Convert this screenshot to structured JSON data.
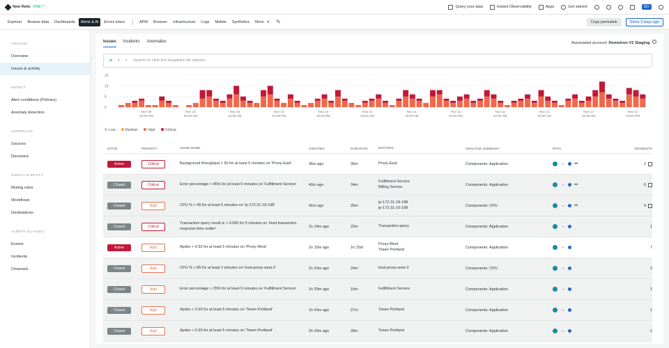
{
  "topbar": {
    "logo_text": "New Relic",
    "logo_suffix": "ONE™",
    "links": [
      "Query your data",
      "Instant Observability",
      "Apps",
      "Get started"
    ],
    "notif_badge": "10+"
  },
  "nav": {
    "items": [
      "Explorer",
      "Browse data",
      "Dashboards",
      "Alerts & AI",
      "Errors inbox",
      "APM",
      "Browser",
      "Infrastructure",
      "Logs",
      "Mobile",
      "Synthetics",
      "More"
    ],
    "active_index": 3,
    "permalink": "Copy permalink",
    "since": "Since 3 days ago"
  },
  "sidebar": {
    "sections": [
      {
        "title": "ANALYZE",
        "items": [
          "Overview",
          "Issues & activity"
        ]
      },
      {
        "title": "DETECT",
        "items": [
          "Alert conditions (Policies)",
          "Anomaly detection"
        ]
      },
      {
        "title": "CORRELATE",
        "items": [
          "Sources",
          "Decisions"
        ]
      },
      {
        "title": "ENRICH & NOTIFY",
        "items": [
          "Muting rules",
          "Workflows",
          "Destinations"
        ]
      },
      {
        "title": "ALERTS (CLASSIC)",
        "items": [
          "Events",
          "Incidents",
          "Channels"
        ]
      }
    ],
    "active": "Issues & activity"
  },
  "tabs": [
    "Issues",
    "Incidents",
    "Anomalies"
  ],
  "assoc": {
    "label": "Associated account:",
    "value": "Demotron V2 Staging"
  },
  "search": {
    "placeholder": "Search or click the dropdown for options"
  },
  "chart_data": {
    "type": "bar",
    "stacked": true,
    "yticks": [
      "15",
      "10",
      "5",
      "0"
    ],
    "xticks": [
      "Nov 09, 10:00 PM",
      "Nov 10, 04:00 AM",
      "Nov 10, 10:00 AM",
      "Nov 10, 04:00 PM",
      "Nov 10, 10:00 PM",
      "Nov 11, 04:00 AM",
      "Nov 11, 10:00 AM",
      "Nov 11, 04:00 PM",
      "Nov 11, 10:00 PM",
      "Nov 12, 04:00 AM",
      "Nov 12, 10:00 AM",
      "Nov 12, 04:00 PM"
    ],
    "legend": [
      {
        "name": "Low",
        "color": "#c4c8c8"
      },
      {
        "name": "Medium",
        "color": "#f5a623"
      },
      {
        "name": "High",
        "color": "#f0684a"
      },
      {
        "name": "Critical",
        "color": "#c21838"
      }
    ],
    "series": [
      {
        "name": "High",
        "values": [
          1,
          2,
          2,
          3,
          1,
          1,
          3,
          2,
          1,
          0,
          1,
          2,
          4,
          5,
          3,
          2,
          4,
          6,
          3,
          2,
          2,
          5,
          6,
          3,
          2,
          4,
          2,
          1,
          2,
          3,
          4,
          2,
          5,
          3,
          2,
          1,
          2,
          3,
          4,
          2,
          1,
          3,
          5,
          4,
          3,
          2,
          5,
          6,
          3,
          2,
          3,
          4,
          2,
          3,
          5,
          4,
          2,
          1,
          2,
          3,
          4,
          2,
          5,
          3,
          2,
          1,
          3,
          4,
          2,
          3,
          5,
          7,
          4,
          3,
          2,
          6,
          5,
          4
        ]
      },
      {
        "name": "Critical",
        "values": [
          0,
          0,
          1,
          1,
          0,
          0,
          2,
          1,
          0,
          0,
          0,
          0,
          4,
          3,
          1,
          1,
          2,
          4,
          2,
          1,
          0,
          3,
          4,
          1,
          0,
          2,
          1,
          0,
          0,
          1,
          2,
          1,
          3,
          1,
          0,
          0,
          1,
          1,
          2,
          1,
          0,
          1,
          3,
          2,
          1,
          0,
          3,
          2,
          1,
          1,
          2,
          2,
          1,
          1,
          3,
          2,
          1,
          0,
          1,
          1,
          2,
          1,
          3,
          2,
          1,
          0,
          1,
          2,
          1,
          2,
          3,
          5,
          2,
          1,
          1,
          3,
          3,
          2
        ]
      }
    ]
  },
  "table": {
    "headers": [
      "STATE",
      "PRIORITY",
      "ISSUE NAME",
      "CREATED",
      "DURATION",
      "ENTITIES",
      "ANALYSIS SUMMARY",
      "PATH",
      "INCIDENTS"
    ],
    "rows": [
      {
        "state": "Active",
        "priority": "Critical",
        "issue": "Background throughput < 50 for at least 5 minutes on 'Proxy-East'",
        "created": "36m ago",
        "duration": "36m",
        "entities": "Proxy-East",
        "summary": "Components: Application",
        "incidents": "2",
        "more": true
      },
      {
        "state": "Closed",
        "priority": "Critical",
        "issue": "Error percentage > 45% for at least 5 minutes on 'Fulfillment Service'",
        "created": "40m ago",
        "duration": "34m",
        "entities": "Fulfillment Service\nBilling Service",
        "summary": "Components: Application",
        "incidents": "6",
        "more": true
      },
      {
        "state": "Closed",
        "priority": "High",
        "issue": "CPU % > 45 for at least 5 minutes on 'ip-172-31-18-198'",
        "created": "41m ago",
        "duration": "25m",
        "entities": "ip-172-31-18-198\nip-172-31-16-198",
        "summary": "Components: CPU",
        "incidents": "4",
        "more": true
      },
      {
        "state": "Closed",
        "priority": "Critical",
        "issue": "Transaction query result is > 0.065 for 5 minutes on 'Host transaction response time outlier'",
        "created": "1h 14m ago",
        "duration": "22m",
        "entities": "Transaction query",
        "summary": "Components: Application",
        "incidents": "1",
        "more": false
      },
      {
        "state": "Active",
        "priority": "High",
        "issue": "Apdex < 0.93 for at least 5 minutes on 'Proxy-West'",
        "created": "1h 15m ago",
        "duration": "1h 15m",
        "entities": "Proxy-West\nTower-Portland",
        "summary": "Components: Application",
        "incidents": "7",
        "more": false
      },
      {
        "state": "Closed",
        "priority": "High",
        "issue": "CPU % > 85 for at least 2 minutes on 'host-proxy-west-2'",
        "created": "1h 20m ago",
        "duration": "24m",
        "entities": "host-proxy-west-2",
        "summary": "Components: CPU",
        "incidents": "2",
        "more": false
      },
      {
        "state": "Closed",
        "priority": "High",
        "issue": "Error percentage > 25% for at least 5 minutes on 'Fulfillment Service'",
        "created": "1h 33m ago",
        "duration": "15m",
        "entities": "Fulfillment Service",
        "summary": "Components: Application",
        "incidents": "1",
        "more": false
      },
      {
        "state": "Closed",
        "priority": "High",
        "issue": "Apdex < 0.93 for at least 5 minutes on 'Tower-Portland'",
        "created": "1h 43m ago",
        "duration": "27m",
        "entities": "Tower-Portland",
        "summary": "Components: Application",
        "incidents": "1",
        "more": false
      },
      {
        "state": "Closed",
        "priority": "High",
        "issue": "Apdex < 0.93 for at least 5 minutes on 'Tower-Portland'",
        "created": "2h 29m ago",
        "duration": "28m",
        "entities": "Tower-Portland",
        "summary": "Components: Application",
        "incidents": "1",
        "more": false
      }
    ]
  }
}
